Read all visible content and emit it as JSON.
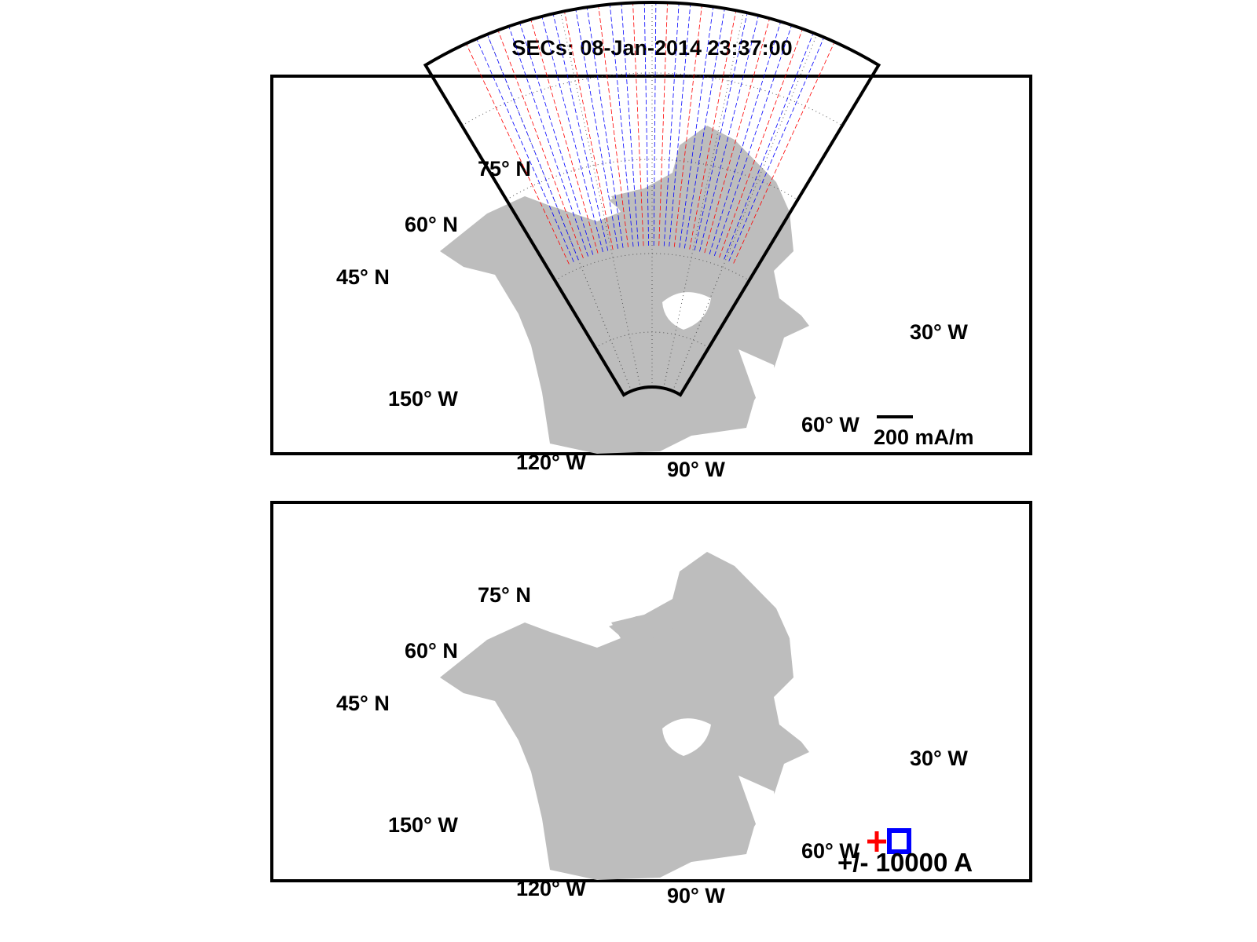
{
  "title": "SECs: 08-Jan-2014 23:37:00",
  "colors": {
    "land": "#bdbdbd",
    "positive": "#ff0000",
    "negative": "#0000ff",
    "ink": "#000000"
  },
  "map": {
    "projection": "polar-sector",
    "lat_labels": [
      "75° N",
      "60° N",
      "45° N"
    ],
    "lon_labels": [
      "150° W",
      "120° W",
      "90° W",
      "60° W",
      "30° W"
    ]
  },
  "panels": [
    {
      "name": "equivalent-currents",
      "legend": {
        "label": "200 mA/m",
        "symbol": "scale-bar"
      }
    },
    {
      "name": "sec-amplitudes",
      "legend": {
        "label": "+/- 10000 A",
        "symbols": [
          "red-plus",
          "blue-square"
        ]
      }
    }
  ]
}
